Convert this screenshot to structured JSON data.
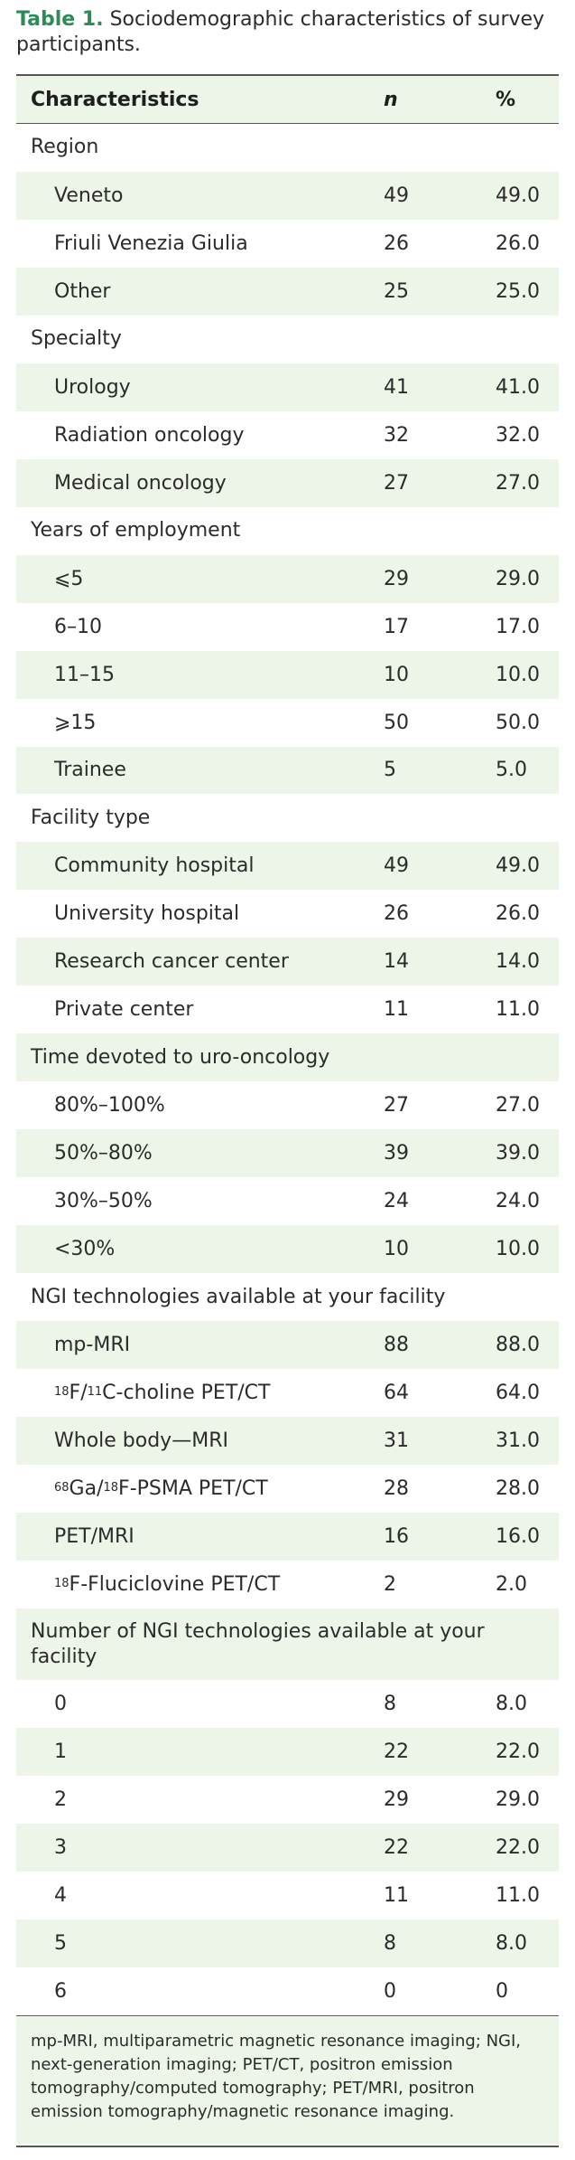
{
  "caption": {
    "label": "Table 1.",
    "text": "Sociodemographic characteristics of survey participants."
  },
  "header": {
    "col1": "Characteristics",
    "col2": "n",
    "col3": "%"
  },
  "rows": [
    {
      "kind": "section",
      "label": "Region"
    },
    {
      "kind": "item",
      "label": "Veneto",
      "n": "49",
      "pct": "49.0"
    },
    {
      "kind": "item",
      "label": "Friuli Venezia Giulia",
      "n": "26",
      "pct": "26.0"
    },
    {
      "kind": "item",
      "label": "Other",
      "n": "25",
      "pct": "25.0"
    },
    {
      "kind": "section",
      "label": "Specialty"
    },
    {
      "kind": "item",
      "label": "Urology",
      "n": "41",
      "pct": "41.0"
    },
    {
      "kind": "item",
      "label": "Radiation oncology",
      "n": "32",
      "pct": "32.0"
    },
    {
      "kind": "item",
      "label": "Medical oncology",
      "n": "27",
      "pct": "27.0"
    },
    {
      "kind": "section",
      "label": "Years of employment"
    },
    {
      "kind": "item",
      "label": "⩽5",
      "n": "29",
      "pct": "29.0"
    },
    {
      "kind": "item",
      "label": "6–10",
      "n": "17",
      "pct": "17.0"
    },
    {
      "kind": "item",
      "label": "11–15",
      "n": "10",
      "pct": "10.0"
    },
    {
      "kind": "item",
      "label": "⩾15",
      "n": "50",
      "pct": "50.0"
    },
    {
      "kind": "item",
      "label": "Trainee",
      "n": "5",
      "pct": "5.0"
    },
    {
      "kind": "section",
      "label": "Facility type"
    },
    {
      "kind": "item",
      "label": "Community hospital",
      "n": "49",
      "pct": "49.0"
    },
    {
      "kind": "item",
      "label": "University hospital",
      "n": "26",
      "pct": "26.0"
    },
    {
      "kind": "item",
      "label": "Research cancer center",
      "n": "14",
      "pct": "14.0"
    },
    {
      "kind": "item",
      "label": "Private center",
      "n": "11",
      "pct": "11.0"
    },
    {
      "kind": "section",
      "label": "Time devoted to uro-oncology"
    },
    {
      "kind": "item",
      "label": "80%–100%",
      "n": "27",
      "pct": "27.0"
    },
    {
      "kind": "item",
      "label": "50%–80%",
      "n": "39",
      "pct": "39.0"
    },
    {
      "kind": "item",
      "label": "30%–50%",
      "n": "24",
      "pct": "24.0"
    },
    {
      "kind": "item",
      "label": "<30%",
      "n": "10",
      "pct": "10.0"
    },
    {
      "kind": "section",
      "label": "NGI technologies available at your facility"
    },
    {
      "kind": "item",
      "label": "mp-MRI",
      "n": "88",
      "pct": "88.0"
    },
    {
      "kind": "item",
      "label": "18F/11C-choline PET/CT",
      "n": "64",
      "pct": "64.0"
    },
    {
      "kind": "item",
      "label": "Whole body—MRI",
      "n": "31",
      "pct": "31.0"
    },
    {
      "kind": "item",
      "label": "68Ga/18F-PSMA PET/CT",
      "n": "28",
      "pct": "28.0"
    },
    {
      "kind": "item",
      "label": "PET/MRI",
      "n": "16",
      "pct": "16.0"
    },
    {
      "kind": "item",
      "label": "18F-Fluciclovine PET/CT",
      "n": "2",
      "pct": "2.0"
    },
    {
      "kind": "section",
      "label": "Number of NGI technologies available at your facility"
    },
    {
      "kind": "item",
      "label": "0",
      "n": "8",
      "pct": "8.0"
    },
    {
      "kind": "item",
      "label": "1",
      "n": "22",
      "pct": "22.0"
    },
    {
      "kind": "item",
      "label": "2",
      "n": "29",
      "pct": "29.0"
    },
    {
      "kind": "item",
      "label": "3",
      "n": "22",
      "pct": "22.0"
    },
    {
      "kind": "item",
      "label": "4",
      "n": "11",
      "pct": "11.0"
    },
    {
      "kind": "item",
      "label": "5",
      "n": "8",
      "pct": "8.0"
    },
    {
      "kind": "item",
      "label": "6",
      "n": "0",
      "pct": "0"
    }
  ],
  "footnote": "mp-MRI, multiparametric magnetic resonance imaging; NGI, next-generation imaging; PET/CT, positron emission tomography/computed tomography; PET/MRI, positron emission tomography/magnetic resonance imaging.",
  "colors": {
    "accent": "#2e8b57",
    "shade": "#edf5e8",
    "text": "#2b2b2b"
  }
}
